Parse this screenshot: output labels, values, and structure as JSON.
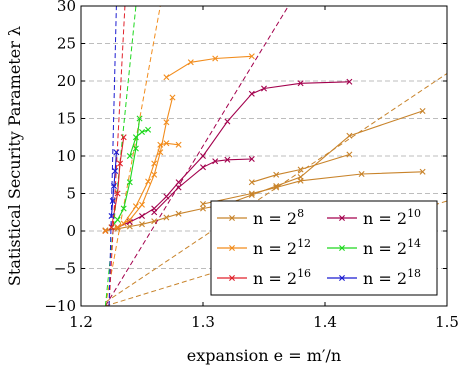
{
  "chart_data": {
    "type": "line",
    "xlabel": "expansion e = m′/n",
    "ylabel": "Statistical Security Parameter λ",
    "xlim": [
      1.2,
      1.5
    ],
    "ylim": [
      -10,
      30
    ],
    "xticks": [
      "1.2",
      "1.3",
      "1.4",
      "1.5"
    ],
    "yticks": [
      "−10",
      "−5",
      "0",
      "5",
      "10",
      "15",
      "20",
      "25",
      "30"
    ],
    "grid": "horizontal dashed",
    "legend_position": "bottom-right",
    "series": [
      {
        "name": "n = 2^8",
        "label_base": "n = 2",
        "label_exp": "8",
        "color": "#c8832a",
        "curves": [
          [
            [
              1.22,
              0.1
            ],
            [
              1.23,
              0.3
            ],
            [
              1.24,
              0.6
            ],
            [
              1.25,
              0.9
            ],
            [
              1.26,
              1.3
            ],
            [
              1.27,
              1.8
            ],
            [
              1.28,
              2.3
            ],
            [
              1.3,
              3.0
            ],
            [
              1.32,
              3.6
            ],
            [
              1.34,
              4.8
            ],
            [
              1.36,
              6.0
            ],
            [
              1.38,
              7.2
            ],
            [
              1.42,
              12.7
            ],
            [
              1.48,
              16.0
            ]
          ],
          [
            [
              1.34,
              6.5
            ],
            [
              1.36,
              7.5
            ],
            [
              1.38,
              8.2
            ],
            [
              1.42,
              10.2
            ]
          ],
          [
            [
              1.3,
              3.6
            ],
            [
              1.34,
              5.0
            ],
            [
              1.36,
              5.8
            ],
            [
              1.38,
              6.7
            ],
            [
              1.43,
              7.6
            ],
            [
              1.48,
              7.9
            ]
          ]
        ],
        "trend": [
          [
            1.22,
            -9.5
          ],
          [
            1.5,
            21.0
          ]
        ],
        "trend2": [
          [
            1.22,
            -10
          ],
          [
            1.5,
            4.0
          ]
        ]
      },
      {
        "name": "n = 2^10",
        "label_base": "n = 2",
        "label_exp": "10",
        "color": "#a3004d",
        "curves": [
          [
            [
              1.22,
              0.0
            ],
            [
              1.23,
              0.5
            ],
            [
              1.24,
              1.2
            ],
            [
              1.25,
              2.0
            ],
            [
              1.26,
              3.0
            ],
            [
              1.27,
              4.6
            ],
            [
              1.28,
              6.5
            ],
            [
              1.3,
              10.0
            ],
            [
              1.32,
              14.6
            ],
            [
              1.34,
              18.3
            ],
            [
              1.35,
              19.0
            ],
            [
              1.38,
              19.7
            ],
            [
              1.42,
              19.9
            ]
          ],
          [
            [
              1.26,
              2.5
            ],
            [
              1.28,
              5.8
            ],
            [
              1.3,
              8.5
            ],
            [
              1.31,
              9.3
            ],
            [
              1.32,
              9.5
            ],
            [
              1.34,
              9.6
            ]
          ]
        ],
        "trend": [
          [
            1.22,
            -10
          ],
          [
            1.37,
            30
          ]
        ]
      },
      {
        "name": "n = 2^12",
        "label_base": "n = 2",
        "label_exp": "12",
        "color": "#f28c1c",
        "curves": [
          [
            [
              1.22,
              0.0
            ],
            [
              1.23,
              0.5
            ],
            [
              1.24,
              1.5
            ],
            [
              1.25,
              3.5
            ],
            [
              1.26,
              7.5
            ],
            [
              1.265,
              10.5
            ],
            [
              1.27,
              14.5
            ],
            [
              1.275,
              17.8
            ]
          ],
          [
            [
              1.235,
              1.0
            ],
            [
              1.245,
              3.3
            ],
            [
              1.255,
              6.6
            ],
            [
              1.26,
              9.0
            ],
            [
              1.265,
              11.5
            ],
            [
              1.27,
              11.7
            ],
            [
              1.28,
              11.5
            ]
          ],
          [
            [
              1.27,
              20.5
            ],
            [
              1.29,
              22.5
            ],
            [
              1.31,
              23.0
            ],
            [
              1.34,
              23.3
            ]
          ]
        ],
        "trend": [
          [
            1.22,
            -10
          ],
          [
            1.265,
            30
          ]
        ]
      },
      {
        "name": "n = 2^14",
        "label_base": "n = 2",
        "label_exp": "14",
        "color": "#1ed81e",
        "curves": [
          [
            [
              1.225,
              0.5
            ],
            [
              1.23,
              1.5
            ],
            [
              1.235,
              3.0
            ],
            [
              1.24,
              6.5
            ],
            [
              1.245,
              11.0
            ],
            [
              1.248,
              15.0
            ]
          ],
          [
            [
              1.24,
              10.0
            ],
            [
              1.245,
              12.5
            ],
            [
              1.25,
              13.2
            ],
            [
              1.255,
              13.5
            ]
          ]
        ],
        "trend": [
          [
            1.22,
            -10
          ],
          [
            1.245,
            30
          ]
        ]
      },
      {
        "name": "n = 2^16",
        "label_base": "n = 2",
        "label_exp": "16",
        "color": "#e0202a",
        "curves": [
          [
            [
              1.225,
              0.5
            ],
            [
              1.23,
              5.0
            ],
            [
              1.232,
              9.0
            ],
            [
              1.235,
              12.5
            ]
          ]
        ],
        "trend": [
          [
            1.223,
            -10
          ],
          [
            1.236,
            30
          ]
        ]
      },
      {
        "name": "n = 2^18",
        "label_base": "n = 2",
        "label_exp": "18",
        "color": "#1a1ad0",
        "curves": [
          [
            [
              1.225,
              2.0
            ],
            [
              1.226,
              4.0
            ],
            [
              1.227,
              6.0
            ],
            [
              1.228,
              8.0
            ],
            [
              1.229,
              10.5
            ]
          ]
        ],
        "trend": [
          [
            1.223,
            -10
          ],
          [
            1.229,
            30
          ]
        ]
      }
    ]
  }
}
